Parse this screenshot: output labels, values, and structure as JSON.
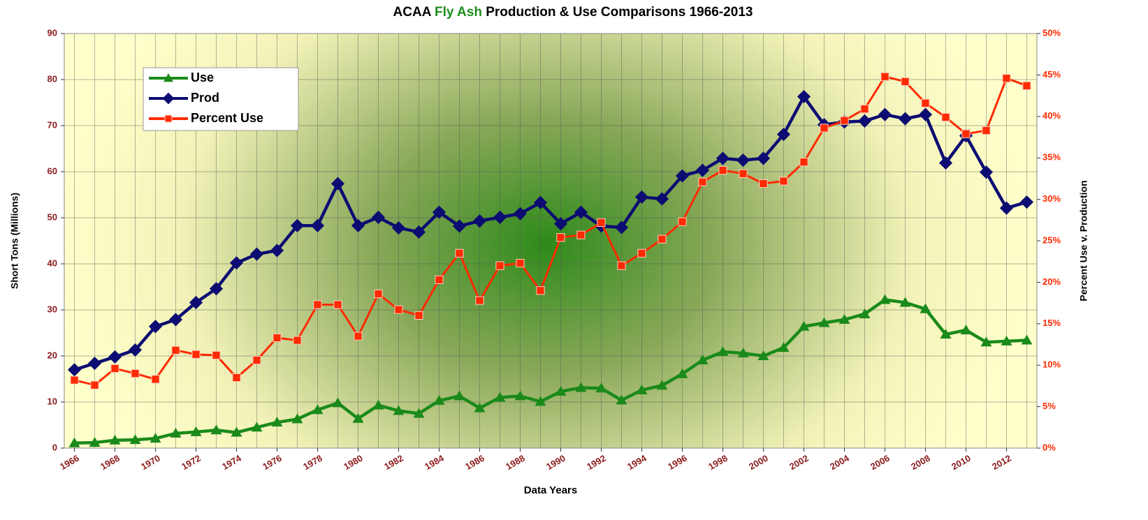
{
  "chart_data": {
    "type": "line",
    "title_parts": [
      "ACAA ",
      "Fly Ash",
      " Production & Use Comparisons 1966-2013"
    ],
    "title_colors": [
      "#000000",
      "#1e8c1e",
      "#000000"
    ],
    "x_label": "Data Years",
    "y_label": "Short Tons (Millions)",
    "y2_label": "Percent Use v. Production",
    "x": [
      1966,
      1967,
      1968,
      1969,
      1970,
      1971,
      1972,
      1973,
      1974,
      1975,
      1976,
      1977,
      1978,
      1979,
      1980,
      1981,
      1982,
      1983,
      1984,
      1985,
      1986,
      1987,
      1988,
      1989,
      1990,
      1991,
      1992,
      1993,
      1994,
      1995,
      1996,
      1997,
      1998,
      1999,
      2000,
      2001,
      2002,
      2003,
      2004,
      2005,
      2006,
      2007,
      2008,
      2009,
      2010,
      2011,
      2012,
      2013
    ],
    "xlim": [
      1965.5,
      2013.5
    ],
    "xticks": [
      1966,
      1968,
      1970,
      1972,
      1974,
      1976,
      1978,
      1980,
      1982,
      1984,
      1986,
      1988,
      1990,
      1992,
      1994,
      1996,
      1998,
      2000,
      2002,
      2004,
      2006,
      2008,
      2010,
      2012
    ],
    "ylim": [
      0,
      90
    ],
    "yticks": [
      0,
      10,
      20,
      30,
      40,
      50,
      60,
      70,
      80,
      90
    ],
    "y2lim": [
      0,
      50
    ],
    "y2ticks": [
      {
        "value": 0,
        "label": "0%"
      },
      {
        "value": 5,
        "label": "5%"
      },
      {
        "value": 10,
        "label": "10%"
      },
      {
        "value": 15,
        "label": "15%"
      },
      {
        "value": 20,
        "label": "20%"
      },
      {
        "value": 25,
        "label": "25%"
      },
      {
        "value": 30,
        "label": "30%"
      },
      {
        "value": 35,
        "label": "35%"
      },
      {
        "value": 40,
        "label": "40%"
      },
      {
        "value": 45,
        "label": "45%"
      },
      {
        "value": 50,
        "label": "50%"
      }
    ],
    "grid": true,
    "legend": "upper left",
    "series": [
      {
        "name": "Use",
        "color": "#1a8a1a",
        "marker": "triangle",
        "values": [
          1.1,
          1.2,
          1.7,
          1.8,
          2.1,
          3.2,
          3.5,
          3.9,
          3.4,
          4.5,
          5.6,
          6.3,
          8.3,
          9.8,
          6.4,
          9.3,
          8.1,
          7.5,
          10.3,
          11.3,
          8.7,
          11.0,
          11.3,
          10.1,
          12.3,
          13.1,
          13.0,
          10.4,
          12.6,
          13.6,
          16.1,
          19.1,
          20.9,
          20.6,
          20.0,
          21.8,
          26.4,
          27.2,
          27.9,
          29.1,
          32.2,
          31.6,
          30.2,
          24.7,
          25.6,
          23.0,
          23.2,
          23.4
        ]
      },
      {
        "name": "Prod",
        "color": "#0c0c72",
        "marker": "diamond",
        "values": [
          17.0,
          18.4,
          19.8,
          21.3,
          26.4,
          27.9,
          31.6,
          34.6,
          40.2,
          42.1,
          42.9,
          48.3,
          48.3,
          57.4,
          48.3,
          50.1,
          47.8,
          46.9,
          51.2,
          48.2,
          49.3,
          50.1,
          50.9,
          53.3,
          48.7,
          51.2,
          48.2,
          47.9,
          54.5,
          54.1,
          59.1,
          60.3,
          62.9,
          62.5,
          62.9,
          68.1,
          76.3,
          70.2,
          70.8,
          71.0,
          72.4,
          71.5,
          72.4,
          61.9,
          67.8,
          59.9,
          52.1,
          53.4
        ]
      },
      {
        "name": "Percent Use",
        "color": "#ff2a00",
        "marker": "square",
        "axis": "y2",
        "values": [
          8.2,
          7.6,
          9.6,
          9.0,
          8.3,
          11.8,
          11.3,
          11.2,
          8.5,
          10.6,
          13.3,
          13.0,
          17.3,
          17.3,
          13.5,
          18.6,
          16.7,
          16.0,
          20.3,
          23.5,
          17.8,
          22.0,
          22.3,
          19.0,
          25.4,
          25.7,
          27.2,
          22.0,
          23.5,
          25.2,
          27.3,
          32.1,
          33.5,
          33.1,
          31.9,
          32.2,
          34.5,
          38.6,
          39.5,
          40.9,
          44.8,
          44.2,
          41.6,
          39.9,
          37.9,
          38.3,
          44.6,
          43.7
        ]
      }
    ]
  }
}
